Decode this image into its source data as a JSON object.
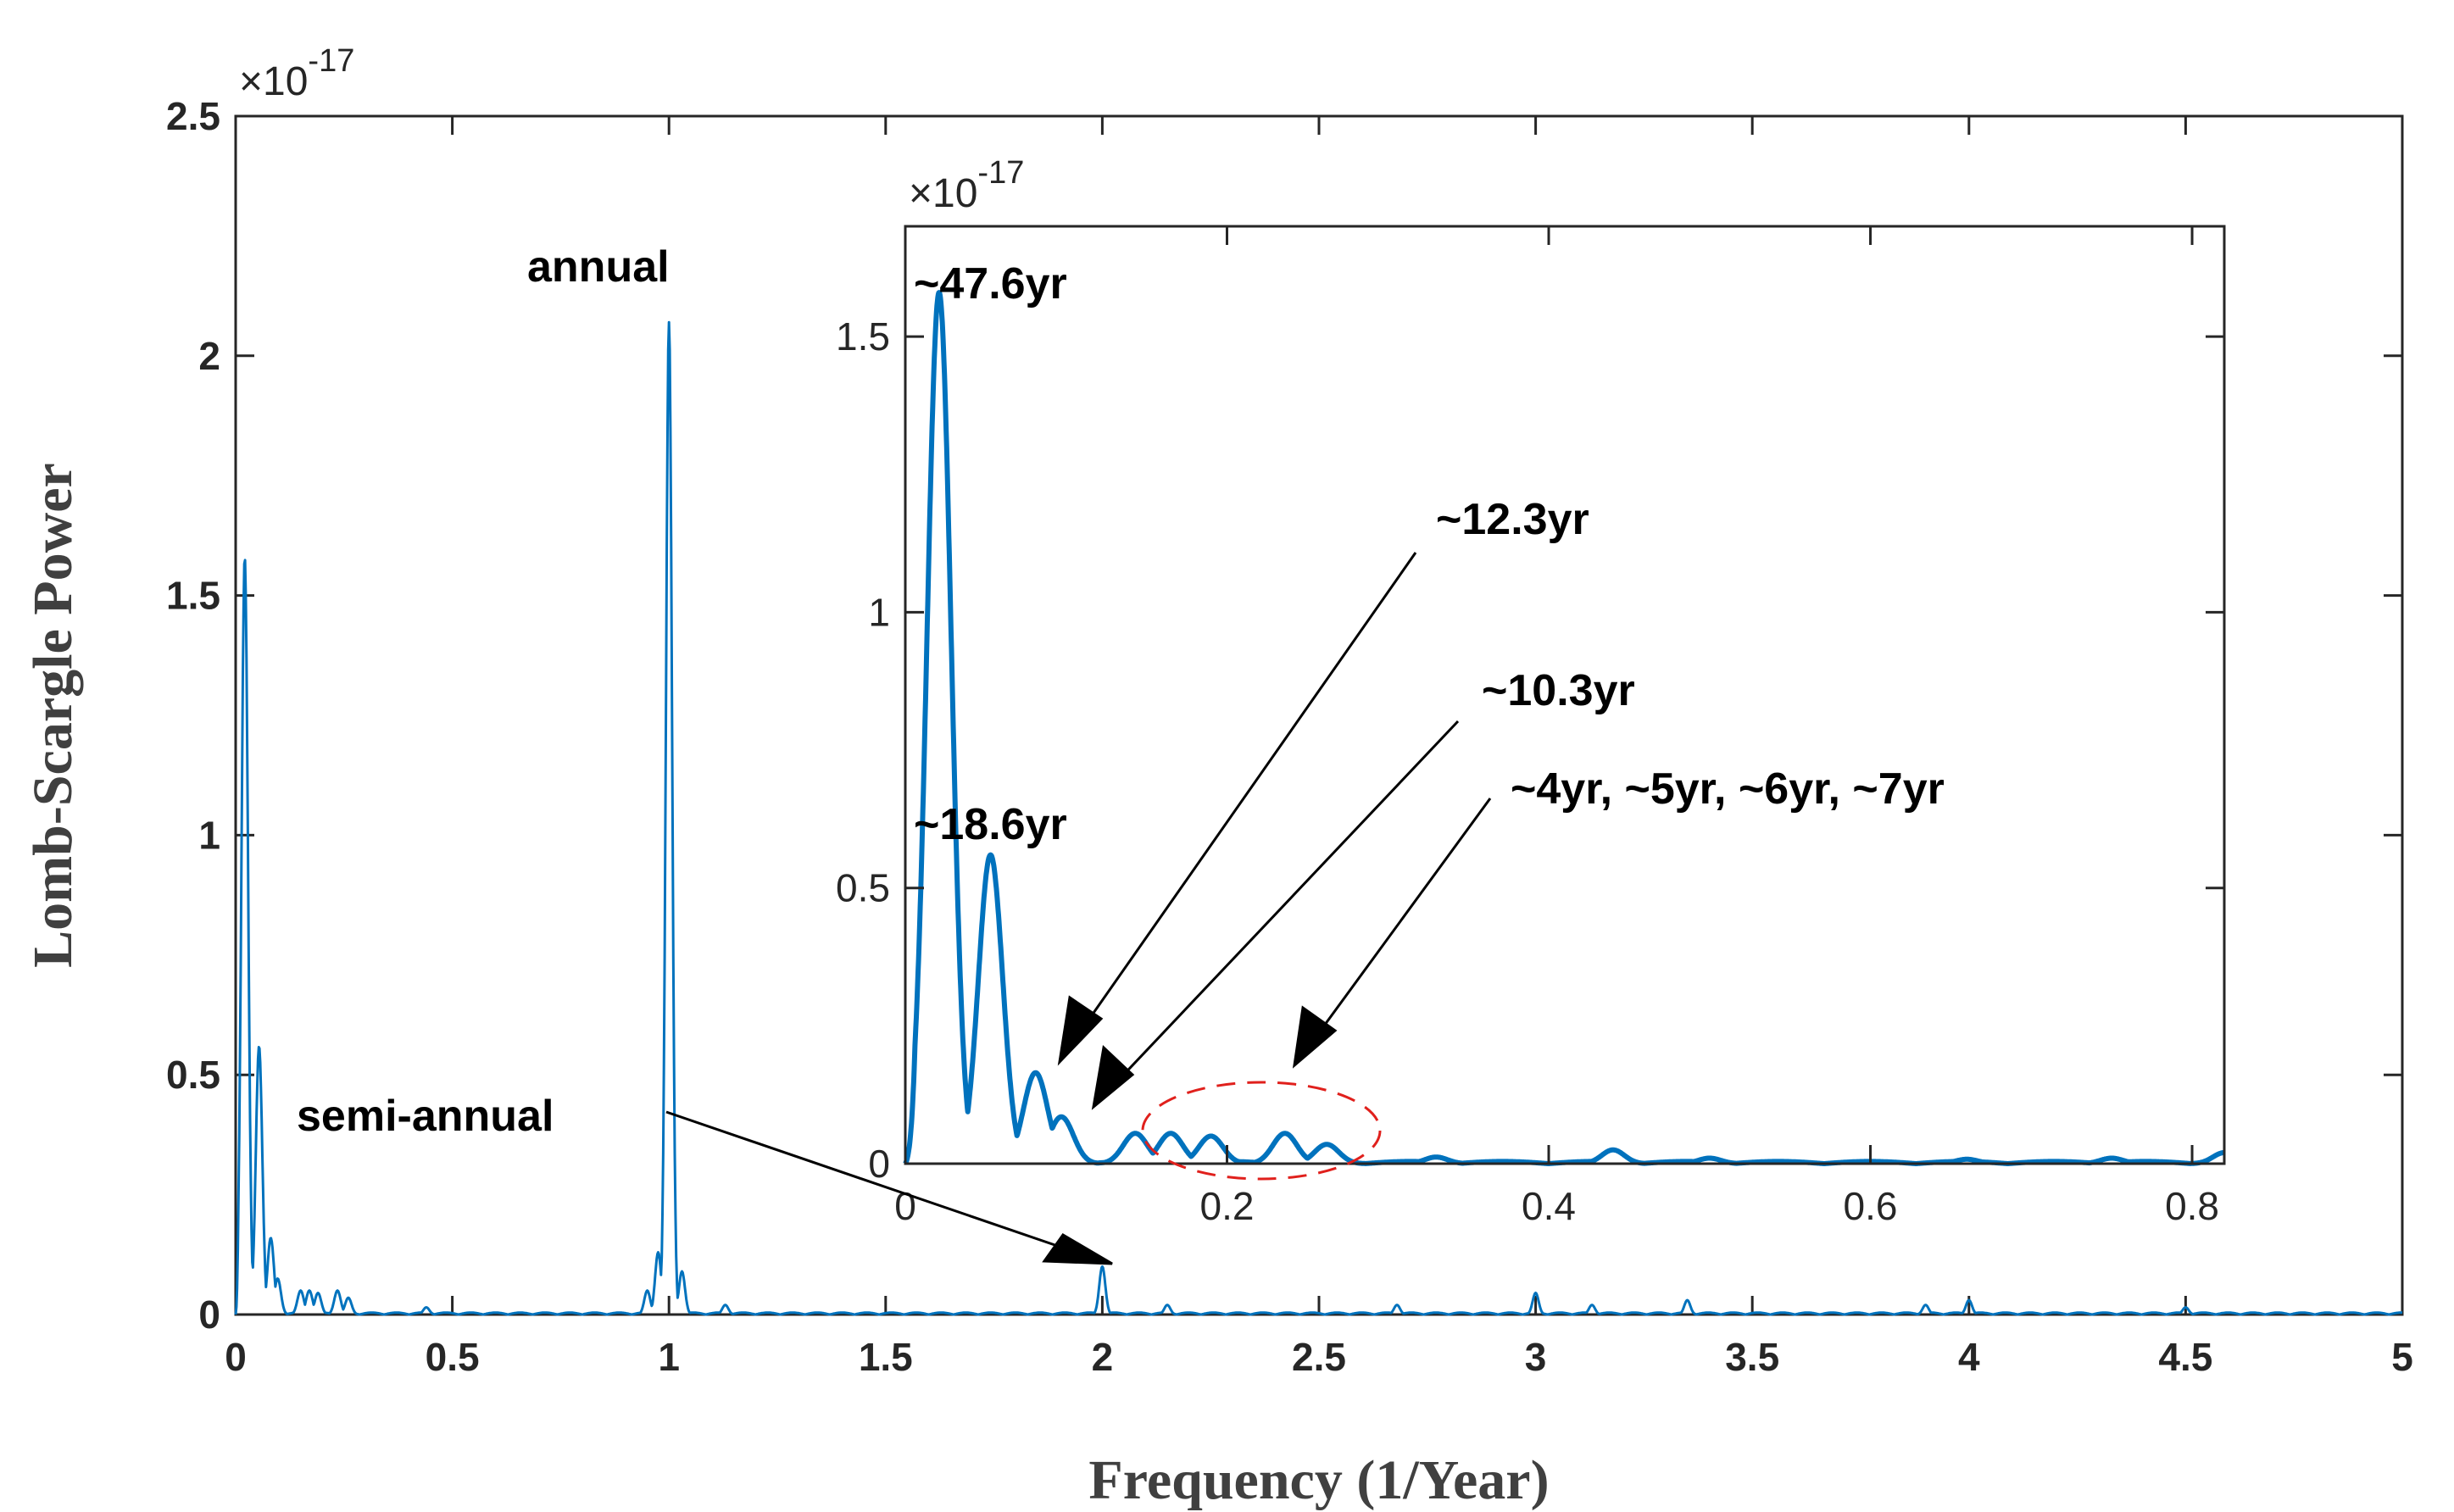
{
  "chart_data": [
    {
      "type": "line",
      "role": "main",
      "xlabel": "Frequency (1/Year)",
      "ylabel": "Lomb-Scargle Power",
      "multiplier": "×10",
      "multiplier_exp": "-17",
      "xlim": [
        0,
        5
      ],
      "ylim": [
        0,
        2.5
      ],
      "xticks": [
        0,
        0.5,
        1,
        1.5,
        2,
        2.5,
        3,
        3.5,
        4,
        4.5,
        5
      ],
      "xtick_labels": [
        "0",
        "0.5",
        "1",
        "1.5",
        "2",
        "2.5",
        "3",
        "3.5",
        "4",
        "4.5",
        "5"
      ],
      "yticks": [
        0,
        0.5,
        1,
        1.5,
        2,
        2.5
      ],
      "ytick_labels": [
        "0",
        "0.5",
        "1",
        "1.5",
        "2",
        "2.5"
      ],
      "color": "#0072BD",
      "peaks": [
        {
          "x": 0.021,
          "y": 1.58
        },
        {
          "x": 0.054,
          "y": 0.56
        },
        {
          "x": 0.081,
          "y": 0.16
        },
        {
          "x": 0.097,
          "y": 0.075
        },
        {
          "x": 0.15,
          "y": 0.05
        },
        {
          "x": 0.17,
          "y": 0.05
        },
        {
          "x": 0.19,
          "y": 0.045
        },
        {
          "x": 0.235,
          "y": 0.05
        },
        {
          "x": 0.26,
          "y": 0.035
        },
        {
          "x": 0.44,
          "y": 0.015
        },
        {
          "x": 0.95,
          "y": 0.05
        },
        {
          "x": 0.975,
          "y": 0.13
        },
        {
          "x": 1.0,
          "y": 2.07
        },
        {
          "x": 1.03,
          "y": 0.09
        },
        {
          "x": 1.13,
          "y": 0.02
        },
        {
          "x": 2.0,
          "y": 0.1
        },
        {
          "x": 2.15,
          "y": 0.02
        },
        {
          "x": 2.68,
          "y": 0.02
        },
        {
          "x": 3.0,
          "y": 0.045
        },
        {
          "x": 3.13,
          "y": 0.02
        },
        {
          "x": 3.35,
          "y": 0.03
        },
        {
          "x": 3.9,
          "y": 0.02
        },
        {
          "x": 4.0,
          "y": 0.03
        },
        {
          "x": 4.5,
          "y": 0.015
        }
      ],
      "annotations": [
        {
          "text": "annual",
          "x": 1.0,
          "y": 2.07
        },
        {
          "text": "semi-annual",
          "x": 2.0,
          "y": 0.1
        }
      ]
    },
    {
      "type": "line",
      "role": "inset",
      "multiplier": "×10",
      "multiplier_exp": "-17",
      "xlim": [
        0,
        0.82
      ],
      "ylim": [
        0,
        1.7
      ],
      "xticks": [
        0,
        0.2,
        0.4,
        0.6,
        0.8
      ],
      "xtick_labels": [
        "0",
        "0.2",
        "0.4",
        "0.6",
        "0.8"
      ],
      "yticks": [
        0,
        0.5,
        1,
        1.5
      ],
      "ytick_labels": [
        "0",
        "0.5",
        "1",
        "1.5"
      ],
      "color": "#0072BD",
      "peaks": [
        {
          "x": 0.021,
          "y": 1.58
        },
        {
          "x": 0.053,
          "y": 0.56
        },
        {
          "x": 0.081,
          "y": 0.165
        },
        {
          "x": 0.097,
          "y": 0.085
        },
        {
          "x": 0.143,
          "y": 0.055
        },
        {
          "x": 0.165,
          "y": 0.055
        },
        {
          "x": 0.19,
          "y": 0.05
        },
        {
          "x": 0.236,
          "y": 0.055
        },
        {
          "x": 0.262,
          "y": 0.035
        },
        {
          "x": 0.33,
          "y": 0.012
        },
        {
          "x": 0.44,
          "y": 0.025
        },
        {
          "x": 0.5,
          "y": 0.01
        },
        {
          "x": 0.66,
          "y": 0.008
        },
        {
          "x": 0.75,
          "y": 0.01
        },
        {
          "x": 0.82,
          "y": 0.02
        }
      ],
      "annotations": [
        {
          "text": "~47.6yr",
          "x": 0.021,
          "y": 1.58
        },
        {
          "text": "~18.6yr",
          "x": 0.053,
          "y": 0.56
        },
        {
          "text": "~12.3yr",
          "x": 0.081,
          "y": 0.165
        },
        {
          "text": "~10.3yr",
          "x": 0.097,
          "y": 0.085
        },
        {
          "text": "~4yr, ~5yr, ~6yr, ~7yr",
          "x": 0.2,
          "y": 0.05
        }
      ]
    }
  ]
}
